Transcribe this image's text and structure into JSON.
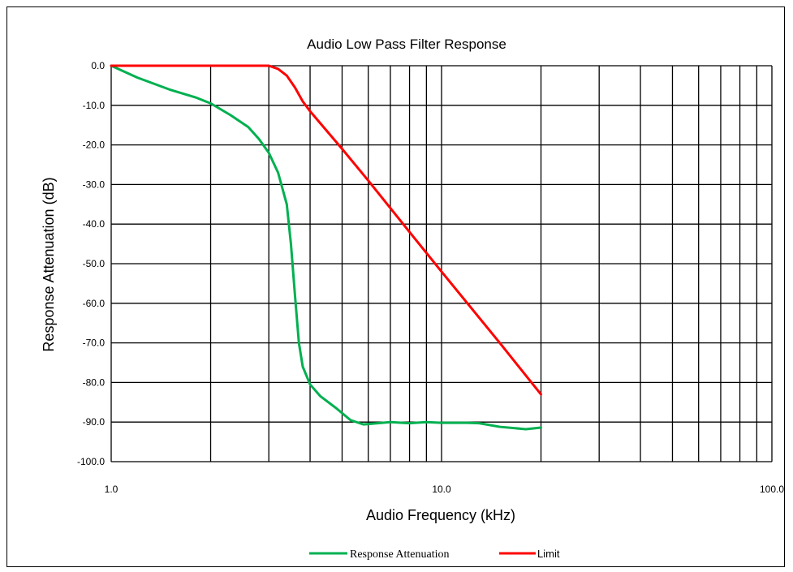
{
  "chart_data": {
    "type": "line",
    "title": "Audio Low Pass Filter Response",
    "xlabel": "Audio Frequency (kHz)",
    "ylabel": "Response  Attenuation  (dB)",
    "x_scale": "log",
    "xlim": [
      1.0,
      100.0
    ],
    "ylim": [
      -100.0,
      0.0
    ],
    "x_ticks": [
      "1.0",
      "10.0",
      "100.0"
    ],
    "y_ticks": [
      "0.0",
      "-10.0",
      "-20.0",
      "-30.0",
      "-40.0",
      "-50.0",
      "-60.0",
      "-70.0",
      "-80.0",
      "-90.0",
      "-100.0"
    ],
    "grid": true,
    "legend_position": "bottom",
    "series": [
      {
        "name": "Response Attenuation",
        "color": "#00b050",
        "x": [
          1.0,
          1.2,
          1.5,
          1.8,
          2.0,
          2.3,
          2.6,
          2.8,
          3.0,
          3.2,
          3.4,
          3.5,
          3.6,
          3.7,
          3.8,
          4.0,
          4.3,
          4.8,
          5.3,
          5.8,
          6.2,
          7.0,
          8.0,
          9.0,
          10.0,
          12.0,
          13.0,
          15.0,
          18.0,
          20.0
        ],
        "y": [
          0.0,
          -3.0,
          -6.0,
          -8.0,
          -9.5,
          -12.5,
          -15.5,
          -18.5,
          -22.0,
          -27.0,
          -35.0,
          -45.0,
          -58.0,
          -70.0,
          -76.0,
          -80.5,
          -83.5,
          -86.5,
          -89.5,
          -90.6,
          -90.4,
          -90.0,
          -90.3,
          -90.0,
          -90.2,
          -90.2,
          -90.3,
          -91.2,
          -91.8,
          -91.4
        ]
      },
      {
        "name": "Limit",
        "color": "#ff0000",
        "x": [
          1.0,
          1.5,
          2.0,
          2.5,
          3.0,
          3.2,
          3.4,
          3.6,
          3.8,
          4.0,
          5.0,
          6.0,
          8.0,
          10.0,
          15.0,
          20.0
        ],
        "y": [
          0.0,
          0.0,
          0.0,
          0.0,
          0.0,
          -0.8,
          -2.5,
          -5.5,
          -9.0,
          -11.5,
          -21.0,
          -29.0,
          -42.0,
          -52.0,
          -70.0,
          -83.0
        ]
      }
    ]
  }
}
